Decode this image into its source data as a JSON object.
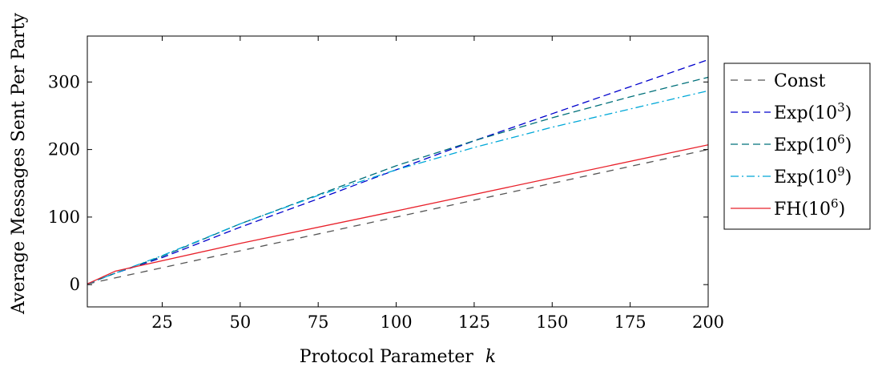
{
  "chart_data": {
    "type": "line",
    "title": "",
    "xlabel": "Protocol Parameter",
    "xlabel_var": "k",
    "ylabel": "Average Messages Sent Per Party",
    "xlim": [
      1,
      200
    ],
    "ylim": [
      -33,
      368
    ],
    "xticks": [
      25,
      50,
      75,
      100,
      125,
      150,
      175,
      200
    ],
    "yticks": [
      0,
      100,
      200,
      300
    ],
    "grid": false,
    "legend_position": "outside-right",
    "series": [
      {
        "name": "Const",
        "color": "#555555",
        "dash": "9 8",
        "x": [
          1,
          200
        ],
        "y": [
          1,
          200
        ]
      },
      {
        "name": "Exp(10³)",
        "label_base": "Exp(10",
        "label_exp": "3",
        "color": "#0000cc",
        "dash": "9 5",
        "x": [
          1,
          10,
          25,
          50,
          75,
          100,
          125,
          150,
          175,
          200
        ],
        "y": [
          1,
          17,
          40,
          85,
          127,
          170,
          213,
          253,
          293,
          333
        ]
      },
      {
        "name": "Exp(10⁶)",
        "label_base": "Exp(10",
        "label_exp": "6",
        "color": "#00707a",
        "dash": "9 5",
        "x": [
          1,
          10,
          25,
          50,
          75,
          100,
          125,
          150,
          175,
          200
        ],
        "y": [
          1,
          17,
          42,
          90,
          133,
          176,
          213,
          247,
          278,
          307
        ]
      },
      {
        "name": "Exp(10⁹)",
        "label_base": "Exp(10",
        "label_exp": "9",
        "color": "#00a8d8",
        "dash": "10 4 2 4",
        "x": [
          1,
          10,
          25,
          50,
          75,
          100,
          125,
          150,
          175,
          200
        ],
        "y": [
          1,
          17,
          43,
          90,
          132,
          170,
          203,
          233,
          260,
          287
        ]
      },
      {
        "name": "FH(10⁶)",
        "label_base": "FH(10",
        "label_exp": "6",
        "color": "#e8202a",
        "dash": "",
        "x": [
          1,
          10,
          50,
          100,
          150,
          200
        ],
        "y": [
          1,
          20,
          61,
          109,
          158,
          207
        ]
      }
    ]
  }
}
